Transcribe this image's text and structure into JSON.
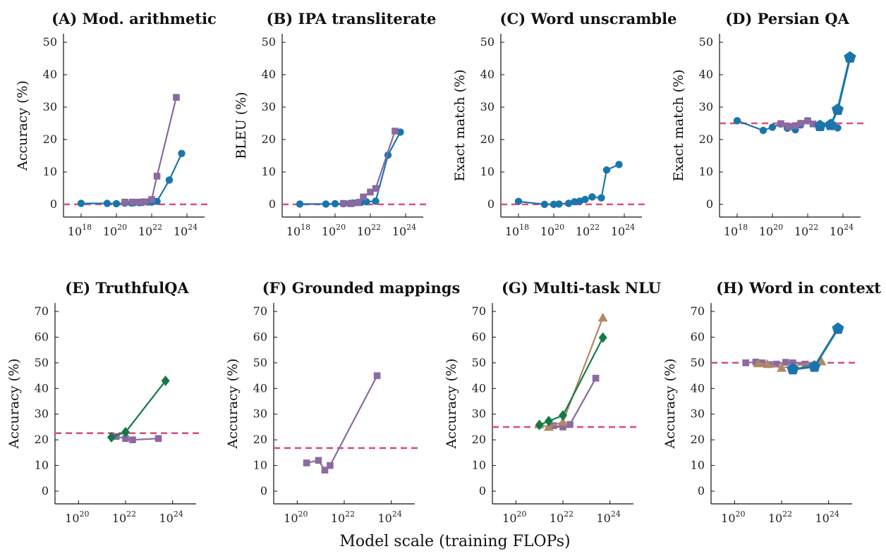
{
  "xlabel": "Model scale (training FLOPs)",
  "colors": {
    "blue": "#1b75ad",
    "purple": "#8a6aa0",
    "green": "#127a45",
    "tan": "#b08a64",
    "baseline": "#d9507e"
  },
  "chart_data": [
    {
      "type": "line",
      "title": "(A) Mod. arithmetic",
      "ylabel": "Accuracy (%)",
      "xscale": "log",
      "xlim": [
        1e+17,
        1e+25
      ],
      "xticks": [
        18,
        20,
        22,
        24
      ],
      "ylim": [
        0,
        50
      ],
      "yticks": [
        0,
        10,
        20,
        30,
        40,
        50
      ],
      "baseline": 0,
      "series": [
        {
          "color": "blue",
          "marker": "circle",
          "points": [
            [
              1e+18,
              0.3
            ],
            [
              3e+19,
              0.3
            ],
            [
              1e+20,
              0.2
            ],
            [
              3e+20,
              0.4
            ],
            [
              7e+20,
              0.4
            ],
            [
              1e+21,
              0.5
            ],
            [
              2e+21,
              0.5
            ],
            [
              3e+21,
              0.6
            ],
            [
              6e+21,
              0.7
            ],
            [
              1e+22,
              0.7
            ],
            [
              2e+22,
              0.9
            ],
            [
              1e+23,
              7.5
            ],
            [
              5e+23,
              15.7
            ]
          ]
        },
        {
          "color": "purple",
          "marker": "square",
          "points": [
            [
              3e+20,
              0.7
            ],
            [
              8e+20,
              0.7
            ],
            [
              2e+21,
              0.7
            ],
            [
              4e+21,
              0.8
            ],
            [
              1e+22,
              1.5
            ],
            [
              2e+22,
              8.7
            ],
            [
              2.5e+23,
              33.0
            ]
          ]
        }
      ]
    },
    {
      "type": "line",
      "title": "(B) IPA transliterate",
      "ylabel": "BLEU (%)",
      "xscale": "log",
      "xlim": [
        1e+17,
        1e+25
      ],
      "xticks": [
        18,
        20,
        22,
        24
      ],
      "ylim": [
        0,
        50
      ],
      "yticks": [
        0,
        10,
        20,
        30,
        40,
        50
      ],
      "baseline": 0,
      "series": [
        {
          "color": "blue",
          "marker": "circle",
          "points": [
            [
              1e+18,
              0.1
            ],
            [
              3e+19,
              0.1
            ],
            [
              1e+20,
              0.2
            ],
            [
              3e+20,
              0.2
            ],
            [
              7e+20,
              0.3
            ],
            [
              1e+21,
              0.4
            ],
            [
              2e+21,
              0.6
            ],
            [
              3e+21,
              0.6
            ],
            [
              6e+21,
              0.8
            ],
            [
              2e+22,
              1.0
            ],
            [
              1e+23,
              15.2
            ],
            [
              5e+23,
              22.3
            ]
          ]
        },
        {
          "color": "purple",
          "marker": "square",
          "points": [
            [
              3e+20,
              0.3
            ],
            [
              8e+20,
              0.2
            ],
            [
              2e+21,
              0.5
            ],
            [
              4e+21,
              2.3
            ],
            [
              1e+22,
              3.8
            ],
            [
              2e+22,
              4.9
            ],
            [
              2.5e+23,
              22.6
            ]
          ]
        }
      ]
    },
    {
      "type": "line",
      "title": "(C) Word unscramble",
      "ylabel": "Exact match (%)",
      "xscale": "log",
      "xlim": [
        1e+17,
        1e+25
      ],
      "xticks": [
        18,
        20,
        22,
        24
      ],
      "ylim": [
        0,
        50
      ],
      "yticks": [
        0,
        10,
        20,
        30,
        40,
        50
      ],
      "baseline": 0,
      "series": [
        {
          "color": "blue",
          "marker": "circle",
          "points": [
            [
              1e+18,
              0.9
            ],
            [
              3e+19,
              0.0
            ],
            [
              1e+20,
              0.0
            ],
            [
              2e+20,
              0.1
            ],
            [
              7e+20,
              0.3
            ],
            [
              1.5e+21,
              0.8
            ],
            [
              3e+21,
              1.0
            ],
            [
              6e+21,
              1.5
            ],
            [
              1.5e+22,
              2.3
            ],
            [
              5e+22,
              2.0
            ],
            [
              1e+23,
              10.6
            ],
            [
              5e+23,
              12.3
            ]
          ]
        }
      ]
    },
    {
      "type": "line",
      "title": "(D) Persian QA",
      "ylabel": "Exact match (%)",
      "xscale": "log",
      "xlim": [
        1e+17,
        1e+25
      ],
      "xticks": [
        18,
        20,
        22,
        24
      ],
      "ylim": [
        0,
        50
      ],
      "yticks": [
        0,
        10,
        20,
        30,
        40,
        50
      ],
      "baseline": 25,
      "series": [
        {
          "color": "blue",
          "marker": "circle",
          "points": [
            [
              1e+18,
              25.8
            ],
            [
              3e+19,
              22.8
            ],
            [
              1e+20,
              23.8
            ],
            [
              3e+20,
              24.8
            ],
            [
              7e+20,
              23.5
            ],
            [
              1e+21,
              24.0
            ],
            [
              2e+21,
              23.0
            ],
            [
              4e+21,
              24.5
            ],
            [
              1e+22,
              25.8
            ],
            [
              5e+22,
              24.3
            ],
            [
              2.5e+23,
              24.0
            ],
            [
              5e+23,
              23.6
            ]
          ]
        },
        {
          "color": "purple",
          "marker": "square",
          "points": [
            [
              3e+20,
              24.9
            ],
            [
              8e+20,
              24.0
            ],
            [
              2e+21,
              24.3
            ],
            [
              4e+21,
              25.0
            ],
            [
              1e+22,
              25.8
            ],
            [
              2e+22,
              24.8
            ],
            [
              2.5e+23,
              24.3
            ]
          ]
        },
        {
          "color": "blue",
          "marker": "pentagon",
          "points": [
            [
              5e+22,
              24.2
            ],
            [
              2e+23,
              24.5
            ],
            [
              5e+23,
              29.2
            ],
            [
              2.5e+24,
              45.3
            ]
          ]
        }
      ]
    },
    {
      "type": "line",
      "title": "(E) TruthfulQA",
      "ylabel": "Accuracy (%)",
      "xscale": "log",
      "xlim": [
        1e+19,
        1e+25
      ],
      "xticks": [
        20,
        22,
        24
      ],
      "ylim": [
        0,
        70
      ],
      "yticks": [
        0,
        10,
        20,
        30,
        40,
        50,
        60,
        70
      ],
      "baseline": 22.6,
      "series": [
        {
          "color": "purple",
          "marker": "square",
          "points": [
            [
              4e+21,
              21.3
            ],
            [
              1e+22,
              20.5
            ],
            [
              2e+22,
              20.0
            ],
            [
              2.5e+23,
              20.5
            ]
          ]
        },
        {
          "color": "green",
          "marker": "diamond",
          "points": [
            [
              2.5e+21,
              21.0
            ],
            [
              1e+22,
              23.0
            ],
            [
              5e+23,
              43.0
            ]
          ]
        }
      ]
    },
    {
      "type": "line",
      "title": "(F) Grounded mappings",
      "ylabel": "Accuracy (%)",
      "xscale": "log",
      "xlim": [
        1e+19,
        1e+25
      ],
      "xticks": [
        20,
        22,
        24
      ],
      "ylim": [
        0,
        70
      ],
      "yticks": [
        0,
        10,
        20,
        30,
        40,
        50,
        60,
        70
      ],
      "baseline": 16.8,
      "series": [
        {
          "color": "purple",
          "marker": "square",
          "points": [
            [
              2.5e+20,
              11.0
            ],
            [
              8e+20,
              12.0
            ],
            [
              1.5e+21,
              8.2
            ],
            [
              2.5e+21,
              10.0
            ],
            [
              2.5e+23,
              45.0
            ]
          ]
        }
      ]
    },
    {
      "type": "line",
      "title": "(G) Multi-task NLU",
      "ylabel": "Accuracy (%)",
      "xscale": "log",
      "xlim": [
        1e+19,
        1e+25
      ],
      "xticks": [
        20,
        22,
        24
      ],
      "ylim": [
        0,
        70
      ],
      "yticks": [
        0,
        10,
        20,
        30,
        40,
        50,
        60,
        70
      ],
      "baseline": 25,
      "series": [
        {
          "color": "purple",
          "marker": "square",
          "points": [
            [
              4e+21,
              25.5
            ],
            [
              1e+22,
              25.0
            ],
            [
              2e+22,
              26.0
            ],
            [
              2.5e+23,
              44.0
            ]
          ]
        },
        {
          "color": "tan",
          "marker": "triangle",
          "points": [
            [
              1e+21,
              26.0
            ],
            [
              2.5e+21,
              25.0
            ],
            [
              1e+22,
              27.0
            ],
            [
              5e+23,
              67.6
            ]
          ]
        },
        {
          "color": "green",
          "marker": "diamond",
          "points": [
            [
              1e+21,
              25.8
            ],
            [
              2.5e+21,
              27.3
            ],
            [
              1e+22,
              29.5
            ],
            [
              5e+23,
              59.8
            ]
          ]
        }
      ]
    },
    {
      "type": "line",
      "title": "(H) Word in context",
      "ylabel": "Accuracy (%)",
      "xscale": "log",
      "xlim": [
        1e+19,
        1e+25
      ],
      "xticks": [
        20,
        22,
        24
      ],
      "ylim": [
        0,
        70
      ],
      "yticks": [
        0,
        10,
        20,
        30,
        40,
        50,
        60,
        70
      ],
      "baseline": 50,
      "series": [
        {
          "color": "purple",
          "marker": "square",
          "points": [
            [
              3e+20,
              50.0
            ],
            [
              8e+20,
              50.3
            ],
            [
              1.5e+21,
              50.0
            ],
            [
              3e+21,
              49.3
            ],
            [
              6e+21,
              49.5
            ],
            [
              1.5e+22,
              50.2
            ],
            [
              3e+22,
              50.0
            ],
            [
              1e+23,
              49.5
            ],
            [
              2.5e+23,
              49.0
            ]
          ]
        },
        {
          "color": "tan",
          "marker": "triangle",
          "points": [
            [
              1e+21,
              49.8
            ],
            [
              2.5e+21,
              49.5
            ],
            [
              1e+22,
              48.0
            ],
            [
              5e+23,
              50.5
            ]
          ]
        },
        {
          "color": "blue",
          "marker": "pentagon",
          "points": [
            [
              3e+22,
              47.5
            ],
            [
              2.5e+23,
              48.5
            ],
            [
              2.5e+24,
              63.3
            ]
          ]
        }
      ]
    }
  ]
}
